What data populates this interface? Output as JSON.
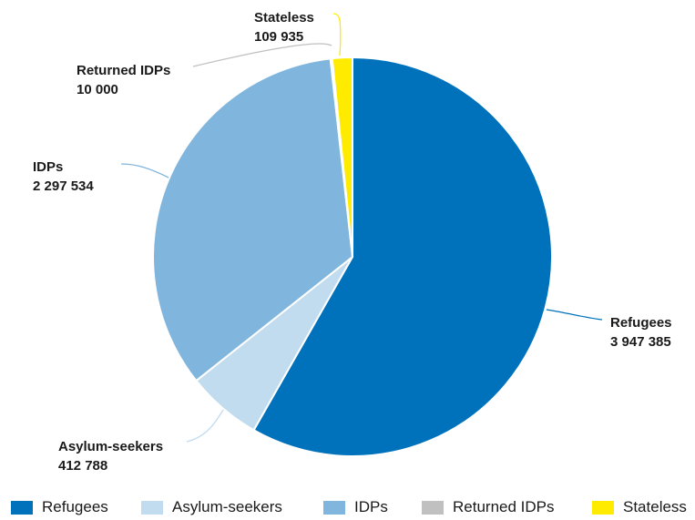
{
  "chart_data": {
    "type": "pie",
    "title": "",
    "start_angle_deg": 0,
    "direction": "clockwise",
    "categories": [
      "Refugees",
      "Asylum-seekers",
      "IDPs",
      "Returned IDPs",
      "Stateless"
    ],
    "values": [
      3947385,
      412788,
      2297534,
      10000,
      109935
    ],
    "value_labels": [
      "3 947 385",
      "412 788",
      "2 297 534",
      "10 000",
      "109 935"
    ],
    "colors": [
      "#0072bc",
      "#c2dcef",
      "#80b6dd",
      "#c0c0c0",
      "#ffeb00"
    ],
    "legend": {
      "position": "bottom",
      "items": [
        "Refugees",
        "Asylum-seekers",
        "IDPs",
        "Returned IDPs",
        "Stateless"
      ]
    }
  }
}
